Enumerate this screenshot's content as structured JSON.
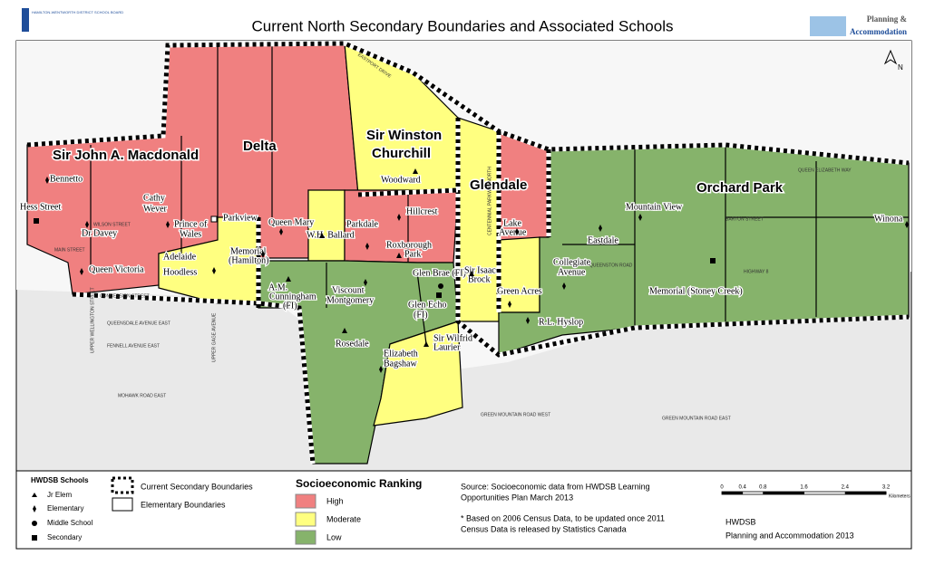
{
  "header": {
    "logo": "HAMILTON-WENTWORTH DISTRICT SCHOOL BOARD",
    "title": "Current North Secondary Boundaries and Associated Schools",
    "dept_line1": "Planning &",
    "dept_line2": "Accommodation"
  },
  "map": {
    "north": "N",
    "areas": [
      "Sir John A. Macdonald",
      "Delta",
      "Sir Winston",
      "Churchill",
      "Glendale",
      "Orchard Park"
    ],
    "schools": [
      "Bennetto",
      "Cathy",
      "Wever",
      "Hess Street",
      "Dr Davey",
      "Prince of",
      "Wales",
      "Parkview",
      "Queen Mary",
      "W.H. Ballard",
      "Parkdale",
      "Hillcrest",
      "Woodward",
      "Roxborough",
      "Park",
      "Memorial",
      "(Hamilton)",
      "Adelaide",
      "Hoodless",
      "Queen Victoria",
      "A.M.",
      "Cunningham",
      "(FI)",
      "Viscount",
      "Montgomery",
      "Glen Brae (FI)",
      "Sir Isaac",
      "Brock",
      "Glen Echo",
      "(FI)",
      "Lake",
      "Avenue",
      "Eastdale",
      "Collegiate",
      "Avenue",
      "Green Acres",
      "Mountain View",
      "Winona",
      "Memorial (Stoney Creek)",
      "R.L. Hyslop",
      "Rosedale",
      "Sir Wilfrid",
      "Laurier",
      "Elizabeth",
      "Bagshaw"
    ],
    "streets": [
      "EASTPORT DRIVE",
      "QUEEN ELIZABETH WAY",
      "BARTON STREET",
      "MAIN STREET",
      "WILSON STREET",
      "CONCESSION STREET",
      "QUEENSDALE AVENUE EAST",
      "FENNELL AVENUE EAST",
      "MOHAWK ROAD EAST",
      "GREEN MOUNTAIN ROAD WEST",
      "GREEN MOUNTAIN ROAD EAST",
      "QUEENSTON ROAD",
      "HIGHWAY 8",
      "CENTENNIAL PARKWAY NORTH",
      "UPPER WELLINGTON STREET",
      "UPPER GAGE AVENUE"
    ]
  },
  "legend": {
    "schools_title": "HWDSB Schools",
    "school_types": [
      "Jr Elem",
      "Elementary",
      "Middle School",
      "Secondary"
    ],
    "boundaries": [
      "Current Secondary Boundaries",
      "Elementary Boundaries"
    ],
    "ranking_title": "Socioeconomic Ranking",
    "rankings": [
      {
        "name": "High",
        "color": "#f08080"
      },
      {
        "name": "Moderate",
        "color": "#ffff80"
      },
      {
        "name": "Low",
        "color": "#86b36b"
      }
    ]
  },
  "source": {
    "line1": "Source: Socioeconomic data from HWDSB Learning",
    "line2": "Opportunities Plan March 2013",
    "line3": "* Based on 2006 Census Data, to be updated once 2011",
    "line4": "Census Data is released by Statistics Canada"
  },
  "scale": {
    "ticks": [
      0,
      0.4,
      0.8,
      1.6,
      2.4,
      3.2
    ],
    "unit": "Kilometers"
  },
  "footer": {
    "org": "HWDSB",
    "dept": "Planning and Accommodation 2013"
  }
}
